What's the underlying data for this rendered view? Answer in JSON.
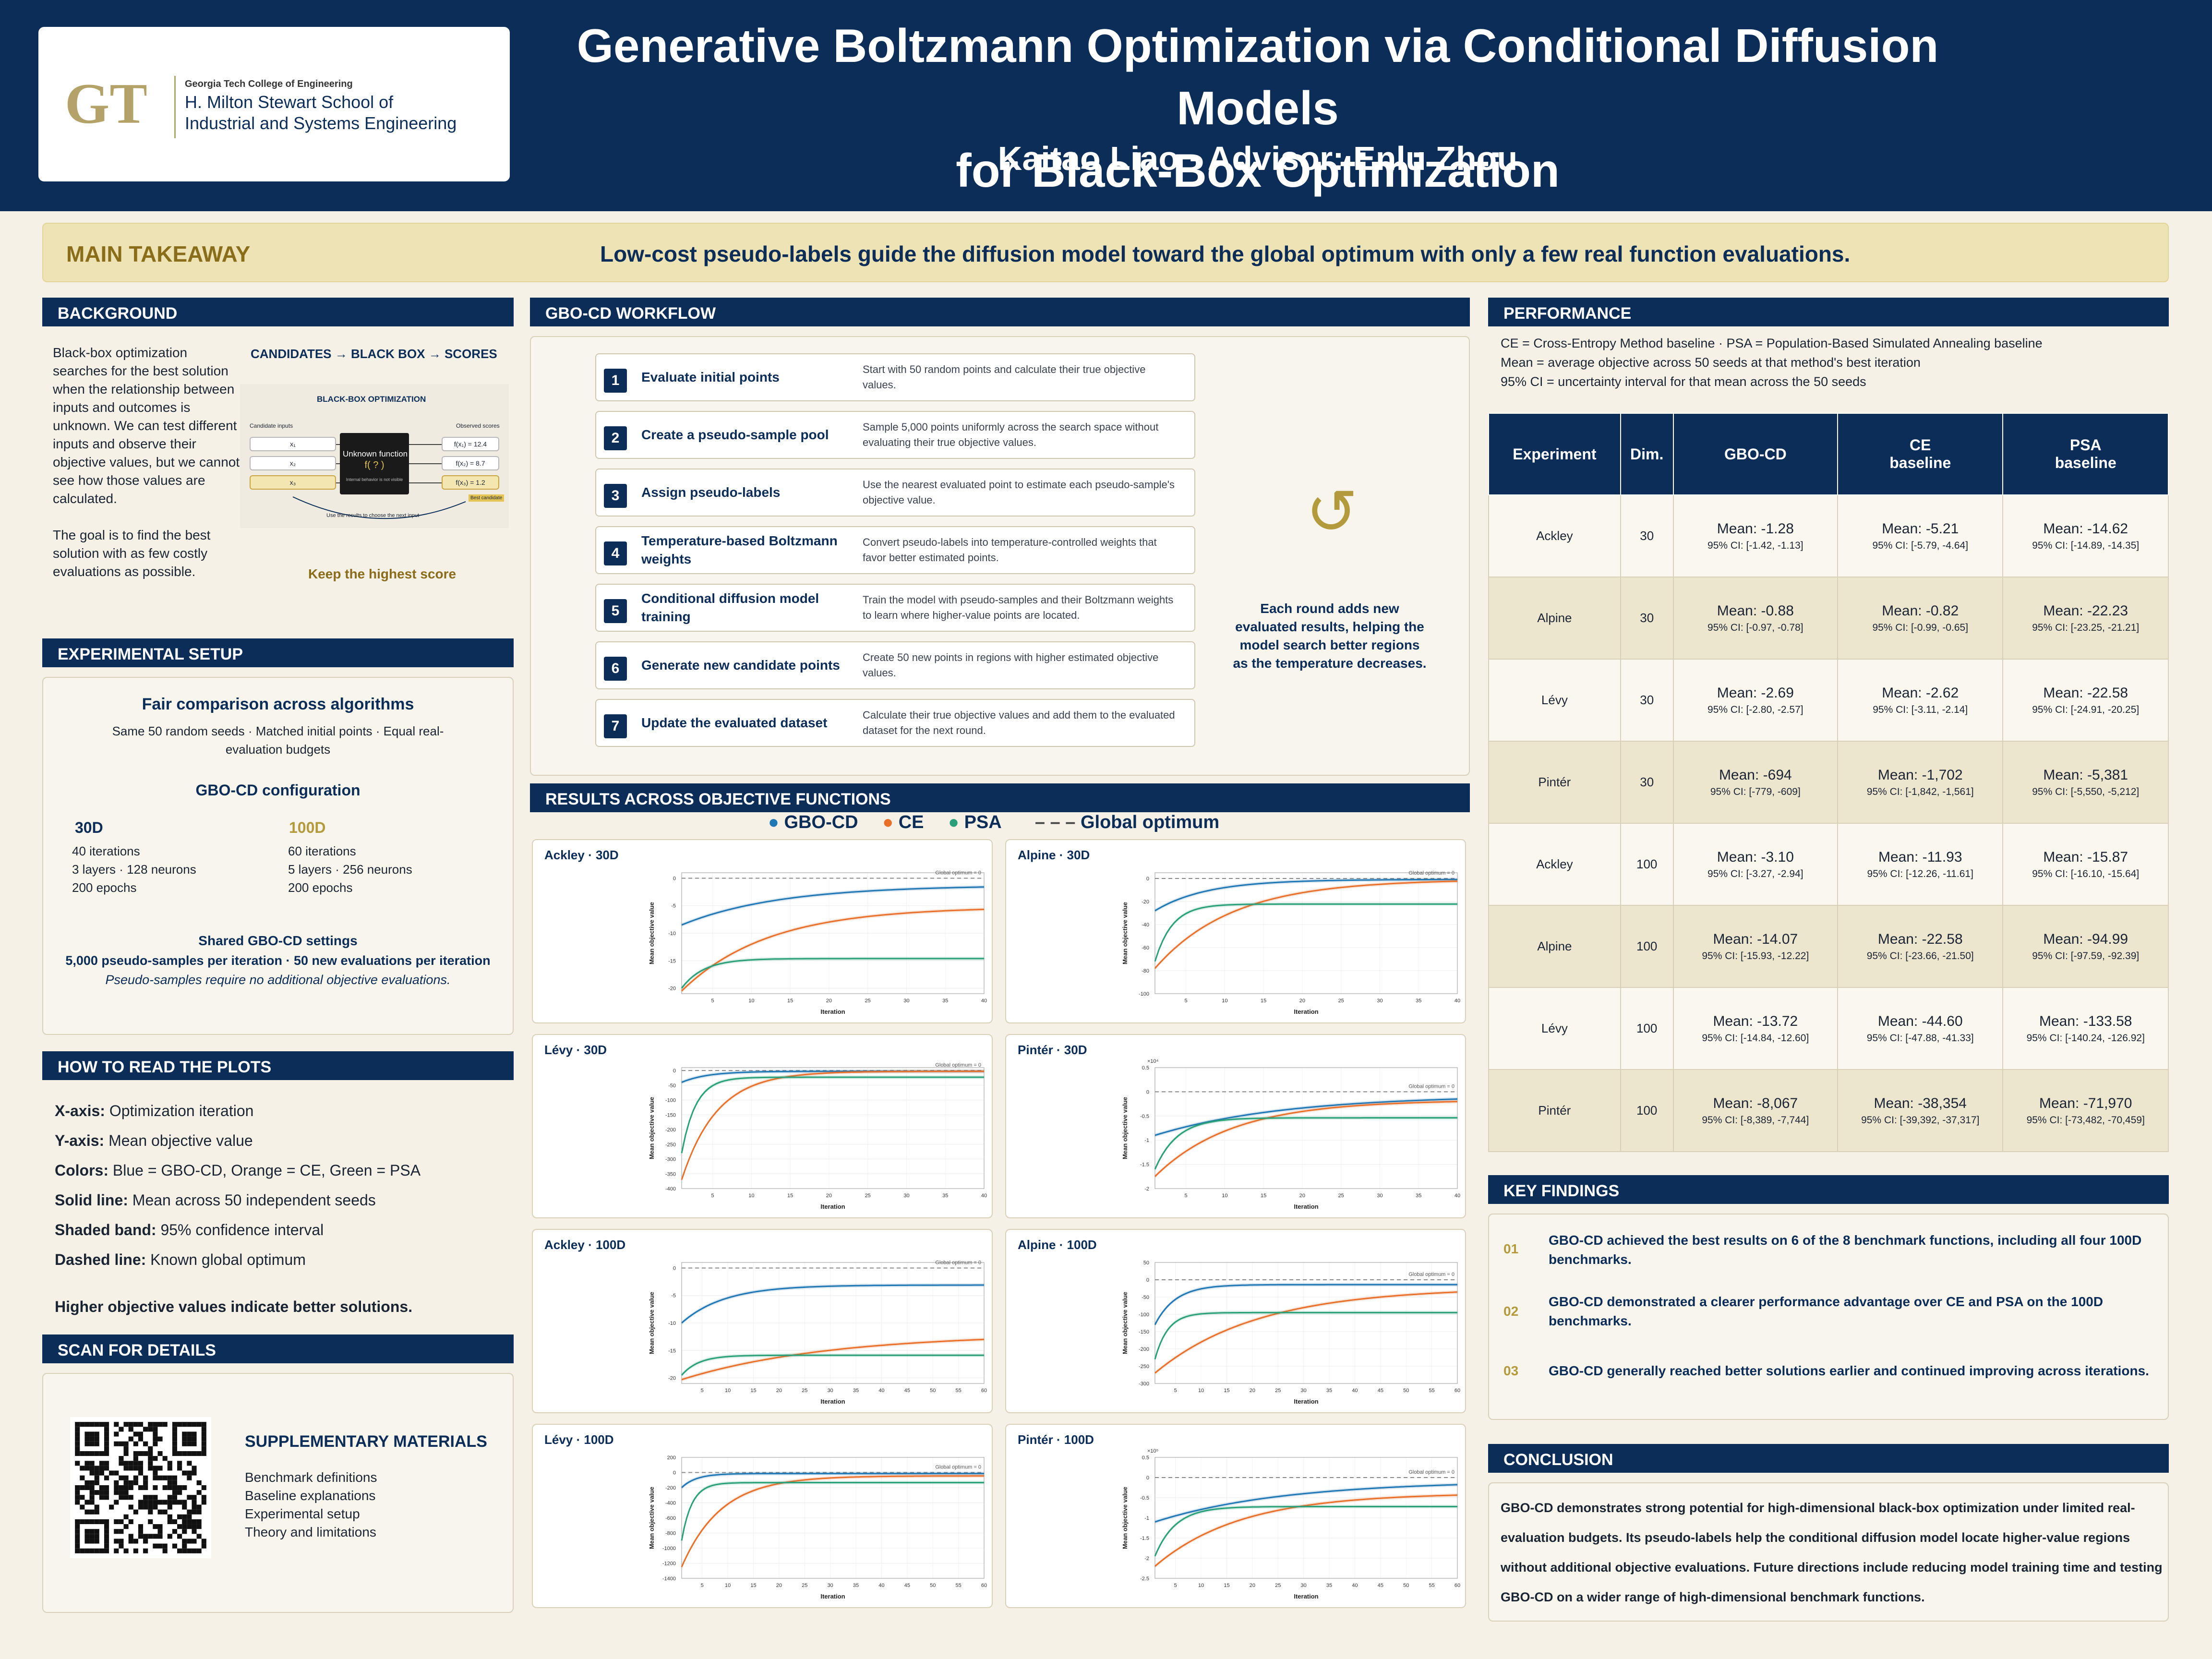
{
  "header": {
    "title_line1": "Generative Boltzmann Optimization via Conditional Diffusion Models",
    "title_line2": "for Black-Box Optimization",
    "authors": "Kaitao Liao  ·  Advisor: Enlu Zhou",
    "logo_mark": "GT",
    "logo_sub": "Georgia Tech College of Engineering",
    "logo_line1": "H. Milton Stewart School of",
    "logo_line2": "Industrial and Systems Engineering"
  },
  "takeaway": {
    "label": "MAIN TAKEAWAY",
    "text": "Low-cost pseudo-labels guide the diffusion model toward the global optimum with only a few real function evaluations."
  },
  "background": {
    "heading": "BACKGROUND",
    "text1": "Black-box optimization searches for the best solution when the relationship between inputs and outcomes is unknown. We can test different inputs and observe their objective values, but we cannot see how those values are calculated.",
    "text2": "The goal is to find the best solution with as few costly evaluations as possible.",
    "flow": "CANDIDATES  →  BLACK BOX  →  SCORES",
    "diagram_title": "BLACK-BOX OPTIMIZATION",
    "candidate_label": "Candidate inputs",
    "observed_label": "Observed scores",
    "inputs": [
      "x₁",
      "x₂",
      "x₃"
    ],
    "scores": [
      "f(x₁) = 12.4",
      "f(x₂) = 8.7",
      "f(x₃) = 1.2"
    ],
    "best_label": "Best candidate",
    "unknown_title": "Unknown function",
    "unknown_f": "f( ? )",
    "unknown_note": "Internal behavior is not visible",
    "loop_label": "Use the results to choose the next input",
    "keep": "Keep the highest score"
  },
  "setup": {
    "heading": "EXPERIMENTAL SETUP",
    "fair_title": "Fair comparison across algorithms",
    "fair_l1": "Same 50 random seeds · Matched initial points · Equal real-",
    "fair_l2": "evaluation budgets",
    "config_title": "GBO-CD configuration",
    "c30_title": "30D",
    "c30_l1": "40 iterations",
    "c30_l2": "3 layers · 128 neurons",
    "c30_l3": "200 epochs",
    "c100_title": "100D",
    "c100_l1": "60 iterations",
    "c100_l2": "5 layers · 256 neurons",
    "c100_l3": "200 epochs",
    "shared_title": "Shared GBO-CD settings",
    "shared_l1": "5,000 pseudo-samples per iteration · 50 new evaluations per iteration",
    "shared_l2": "Pseudo-samples require no additional objective evaluations."
  },
  "howto": {
    "heading": "HOW TO READ THE PLOTS",
    "lines": [
      {
        "k": "X-axis:",
        "v": " Optimization iteration"
      },
      {
        "k": "Y-axis:",
        "v": " Mean objective value"
      },
      {
        "k": "Colors:",
        "v": " Blue = GBO-CD, Orange = CE, Green = PSA"
      },
      {
        "k": "Solid line:",
        "v": " Mean across 50 independent seeds"
      },
      {
        "k": "Shaded band:",
        "v": " 95% confidence interval"
      },
      {
        "k": "Dashed line:",
        "v": " Known global optimum"
      }
    ],
    "note": "Higher objective values indicate better solutions."
  },
  "scan": {
    "heading": "SCAN FOR DETAILS",
    "title": "SUPPLEMENTARY MATERIALS",
    "items": [
      "Benchmark definitions",
      "Baseline explanations",
      "Experimental setup",
      "Theory and limitations"
    ]
  },
  "workflow": {
    "heading": "GBO-CD WORKFLOW",
    "steps": [
      {
        "n": "1",
        "title": "Evaluate initial points",
        "desc": "Start with 50 random points and calculate their true objective values."
      },
      {
        "n": "2",
        "title": "Create a pseudo-sample pool",
        "desc": "Sample 5,000 points uniformly across the search space without evaluating their true objective values."
      },
      {
        "n": "3",
        "title": "Assign pseudo-labels",
        "desc": "Use the nearest evaluated point to estimate each pseudo-sample's objective value."
      },
      {
        "n": "4",
        "title": "Temperature-based Boltzmann weights",
        "desc": "Convert pseudo-labels into temperature-controlled weights that favor better estimated points."
      },
      {
        "n": "5",
        "title": "Conditional diffusion model training",
        "desc": "Train the model with pseudo-samples and their Boltzmann weights to learn where higher-value points are located."
      },
      {
        "n": "6",
        "title": "Generate new candidate points",
        "desc": "Create 50 new points in regions with higher estimated objective values."
      },
      {
        "n": "7",
        "title": "Update the evaluated dataset",
        "desc": "Calculate their true objective values and add them to the evaluated dataset for the next round."
      }
    ],
    "loop_icon": "↺",
    "loop_text_l1": "Each round adds new",
    "loop_text_l2": "evaluated results, helping the",
    "loop_text_l3": "model search better regions",
    "loop_text_l4": "as the temperature decreases."
  },
  "results": {
    "heading": "RESULTS ACROSS OBJECTIVE FUNCTIONS",
    "legend": {
      "gbo": "GBO-CD",
      "ce": "CE",
      "psa": "PSA",
      "opt": "Global optimum"
    },
    "colors": {
      "gbo": "#1f77b4",
      "ce": "#e8702a",
      "psa": "#2aa07a",
      "opt": "#999999"
    },
    "optimum_label": "Global optimum = 0",
    "xlabel": "Iteration",
    "ylabel": "Mean objective value"
  },
  "chart_data": [
    {
      "type": "line",
      "title": "Ackley · 30D",
      "xlabel": "Iteration",
      "ylabel": "Mean objective value",
      "xlim": [
        1,
        40
      ],
      "ylim": [
        -21,
        1
      ],
      "xticks": [
        5,
        10,
        15,
        20,
        25,
        30,
        35,
        40
      ],
      "yticks": [
        0,
        -5,
        -10,
        -15,
        -20
      ],
      "scale_note": "",
      "optimum": 0,
      "series": [
        {
          "name": "GBO-CD",
          "start": -8.5,
          "end": -1.28,
          "k": 0.08
        },
        {
          "name": "CE",
          "start": -20.5,
          "end": -5.21,
          "k": 0.09
        },
        {
          "name": "PSA",
          "start": -20.0,
          "end": -14.62,
          "k": 0.35
        }
      ]
    },
    {
      "type": "line",
      "title": "Alpine · 30D",
      "xlabel": "Iteration",
      "ylabel": "Mean objective value",
      "xlim": [
        1,
        40
      ],
      "ylim": [
        -100,
        5
      ],
      "xticks": [
        5,
        10,
        15,
        20,
        25,
        30,
        35,
        40
      ],
      "yticks": [
        0,
        -20,
        -40,
        -60,
        -80,
        -100
      ],
      "scale_note": "",
      "optimum": 0,
      "series": [
        {
          "name": "GBO-CD",
          "start": -28,
          "end": -0.88,
          "k": 0.15
        },
        {
          "name": "CE",
          "start": -78,
          "end": -0.82,
          "k": 0.1
        },
        {
          "name": "PSA",
          "start": -72,
          "end": -22.23,
          "k": 0.45
        }
      ]
    },
    {
      "type": "line",
      "title": "Lévy · 30D",
      "xlabel": "Iteration",
      "ylabel": "Mean objective value",
      "xlim": [
        1,
        40
      ],
      "ylim": [
        -400,
        10
      ],
      "xticks": [
        5,
        10,
        15,
        20,
        25,
        30,
        35,
        40
      ],
      "yticks": [
        0,
        -50,
        -100,
        -150,
        -200,
        -250,
        -300,
        -350,
        -400
      ],
      "scale_note": "",
      "optimum": 0,
      "series": [
        {
          "name": "GBO-CD",
          "start": -40,
          "end": -2.69,
          "k": 0.3
        },
        {
          "name": "CE",
          "start": -370,
          "end": -2.62,
          "k": 0.22
        },
        {
          "name": "PSA",
          "start": -280,
          "end": -22.58,
          "k": 0.55
        }
      ]
    },
    {
      "type": "line",
      "title": "Pintér · 30D",
      "xlabel": "Iteration",
      "ylabel": "Mean objective value",
      "xlim": [
        1,
        40
      ],
      "ylim": [
        -2.0,
        0.5
      ],
      "xticks": [
        5,
        10,
        15,
        20,
        25,
        30,
        35,
        40
      ],
      "yticks": [
        0.5,
        0,
        -0.5,
        -1.0,
        -1.5,
        -2.0
      ],
      "scale_note": "×10⁴",
      "optimum": 0,
      "series": [
        {
          "name": "GBO-CD",
          "start": -0.9,
          "end": -0.0694,
          "k": 0.06
        },
        {
          "name": "CE",
          "start": -1.75,
          "end": -0.1702,
          "k": 0.1
        },
        {
          "name": "PSA",
          "start": -1.6,
          "end": -0.5381,
          "k": 0.35
        }
      ]
    },
    {
      "type": "line",
      "title": "Ackley · 100D",
      "xlabel": "Iteration",
      "ylabel": "Mean objective value",
      "xlim": [
        1,
        60
      ],
      "ylim": [
        -21,
        1
      ],
      "xticks": [
        5,
        10,
        15,
        20,
        25,
        30,
        35,
        40,
        45,
        50,
        55,
        60
      ],
      "yticks": [
        0,
        -5,
        -10,
        -15,
        -20
      ],
      "scale_note": "",
      "optimum": 0,
      "series": [
        {
          "name": "GBO-CD",
          "start": -10,
          "end": -3.1,
          "k": 0.12
        },
        {
          "name": "CE",
          "start": -20.3,
          "end": -11.93,
          "k": 0.035
        },
        {
          "name": "PSA",
          "start": -19.5,
          "end": -15.87,
          "k": 0.3
        }
      ]
    },
    {
      "type": "line",
      "title": "Alpine · 100D",
      "xlabel": "Iteration",
      "ylabel": "Mean objective value",
      "xlim": [
        1,
        60
      ],
      "ylim": [
        -300,
        50
      ],
      "xticks": [
        5,
        10,
        15,
        20,
        25,
        30,
        35,
        40,
        45,
        50,
        55,
        60
      ],
      "yticks": [
        50,
        0,
        -50,
        -100,
        -150,
        -200,
        -250,
        -300
      ],
      "scale_note": "",
      "optimum": 0,
      "series": [
        {
          "name": "GBO-CD",
          "start": -130,
          "end": -14.07,
          "k": 0.25
        },
        {
          "name": "CE",
          "start": -270,
          "end": -22.58,
          "k": 0.05
        },
        {
          "name": "PSA",
          "start": -230,
          "end": -94.99,
          "k": 0.4
        }
      ]
    },
    {
      "type": "line",
      "title": "Lévy · 100D",
      "xlabel": "Iteration",
      "ylabel": "Mean objective value",
      "xlim": [
        1,
        60
      ],
      "ylim": [
        -1400,
        200
      ],
      "xticks": [
        5,
        10,
        15,
        20,
        25,
        30,
        35,
        40,
        45,
        50,
        55,
        60
      ],
      "yticks": [
        200,
        0,
        -200,
        -400,
        -600,
        -800,
        -1000,
        -1200,
        -1400
      ],
      "scale_note": "",
      "optimum": 0,
      "series": [
        {
          "name": "GBO-CD",
          "start": -200,
          "end": -13.72,
          "k": 0.35
        },
        {
          "name": "CE",
          "start": -1250,
          "end": -44.6,
          "k": 0.13
        },
        {
          "name": "PSA",
          "start": -900,
          "end": -133.58,
          "k": 0.5
        }
      ]
    },
    {
      "type": "line",
      "title": "Pintér · 100D",
      "xlabel": "Iteration",
      "ylabel": "Mean objective value",
      "xlim": [
        1,
        60
      ],
      "ylim": [
        -2.5,
        0.5
      ],
      "xticks": [
        5,
        10,
        15,
        20,
        25,
        30,
        35,
        40,
        45,
        50,
        55,
        60
      ],
      "yticks": [
        0.5,
        0,
        -0.5,
        -1.0,
        -1.5,
        -2.0,
        -2.5
      ],
      "scale_note": "×10⁵",
      "optimum": 0,
      "series": [
        {
          "name": "GBO-CD",
          "start": -1.1,
          "end": -0.08067,
          "k": 0.04
        },
        {
          "name": "CE",
          "start": -2.2,
          "end": -0.38354,
          "k": 0.06
        },
        {
          "name": "PSA",
          "start": -1.95,
          "end": -0.7197,
          "k": 0.25
        }
      ]
    }
  ],
  "performance": {
    "heading": "PERFORMANCE",
    "legend_l1": "CE = Cross-Entropy Method baseline · PSA = Population-Based Simulated Annealing baseline",
    "legend_l2": "Mean = average objective across 50 seeds at that method's best iteration",
    "legend_l3": "95% CI = uncertainty interval for that mean across the 50 seeds",
    "headers": {
      "exp": "Experiment",
      "dim": "Dim.",
      "gbo": "GBO-CD",
      "ce_l1": "CE",
      "ce_l2": "baseline",
      "psa_l1": "PSA",
      "psa_l2": "baseline"
    },
    "rows": [
      {
        "exp": "Ackley",
        "dim": "30",
        "gbo_m": "Mean: -1.28",
        "gbo_ci": "95% CI: [-1.42, -1.13]",
        "ce_m": "Mean: -5.21",
        "ce_ci": "95% CI: [-5.79, -4.64]",
        "psa_m": "Mean: -14.62",
        "psa_ci": "95% CI: [-14.89, -14.35]"
      },
      {
        "exp": "Alpine",
        "dim": "30",
        "gbo_m": "Mean: -0.88",
        "gbo_ci": "95% CI: [-0.97, -0.78]",
        "ce_m": "Mean: -0.82",
        "ce_ci": "95% CI: [-0.99, -0.65]",
        "psa_m": "Mean: -22.23",
        "psa_ci": "95% CI: [-23.25, -21.21]"
      },
      {
        "exp": "Lévy",
        "dim": "30",
        "gbo_m": "Mean: -2.69",
        "gbo_ci": "95% CI: [-2.80, -2.57]",
        "ce_m": "Mean: -2.62",
        "ce_ci": "95% CI: [-3.11, -2.14]",
        "psa_m": "Mean: -22.58",
        "psa_ci": "95% CI: [-24.91, -20.25]"
      },
      {
        "exp": "Pintér",
        "dim": "30",
        "gbo_m": "Mean: -694",
        "gbo_ci": "95% CI: [-779, -609]",
        "ce_m": "Mean: -1,702",
        "ce_ci": "95% CI: [-1,842, -1,561]",
        "psa_m": "Mean: -5,381",
        "psa_ci": "95% CI: [-5,550, -5,212]"
      },
      {
        "exp": "Ackley",
        "dim": "100",
        "gbo_m": "Mean: -3.10",
        "gbo_ci": "95% CI: [-3.27, -2.94]",
        "ce_m": "Mean: -11.93",
        "ce_ci": "95% CI: [-12.26, -11.61]",
        "psa_m": "Mean: -15.87",
        "psa_ci": "95% CI: [-16.10, -15.64]"
      },
      {
        "exp": "Alpine",
        "dim": "100",
        "gbo_m": "Mean: -14.07",
        "gbo_ci": "95% CI: [-15.93, -12.22]",
        "ce_m": "Mean: -22.58",
        "ce_ci": "95% CI: [-23.66, -21.50]",
        "psa_m": "Mean: -94.99",
        "psa_ci": "95% CI: [-97.59, -92.39]"
      },
      {
        "exp": "Lévy",
        "dim": "100",
        "gbo_m": "Mean: -13.72",
        "gbo_ci": "95% CI: [-14.84, -12.60]",
        "ce_m": "Mean: -44.60",
        "ce_ci": "95% CI: [-47.88, -41.33]",
        "psa_m": "Mean: -133.58",
        "psa_ci": "95% CI: [-140.24, -126.92]"
      },
      {
        "exp": "Pintér",
        "dim": "100",
        "gbo_m": "Mean: -8,067",
        "gbo_ci": "95% CI: [-8,389, -7,744]",
        "ce_m": "Mean: -38,354",
        "ce_ci": "95% CI: [-39,392, -37,317]",
        "psa_m": "Mean: -71,970",
        "psa_ci": "95% CI: [-73,482, -70,459]"
      }
    ]
  },
  "findings": {
    "heading": "KEY FINDINGS",
    "items": [
      {
        "n": "01",
        "text": "GBO-CD achieved the best results on 6 of the 8 benchmark functions, including all four 100D benchmarks."
      },
      {
        "n": "02",
        "text": "GBO-CD demonstrated a clearer performance advantage over CE and PSA on the 100D benchmarks."
      },
      {
        "n": "03",
        "text": "GBO-CD generally reached better solutions earlier and continued improving across iterations."
      }
    ]
  },
  "conclusion": {
    "heading": "CONCLUSION",
    "text": "GBO-CD demonstrates strong potential for high-dimensional black-box optimization under limited real-evaluation budgets. Its pseudo-labels help the conditional diffusion model locate higher-value regions without additional objective evaluations. Future directions include reducing model training time and testing GBO-CD on a wider range of high-dimensional benchmark functions."
  }
}
